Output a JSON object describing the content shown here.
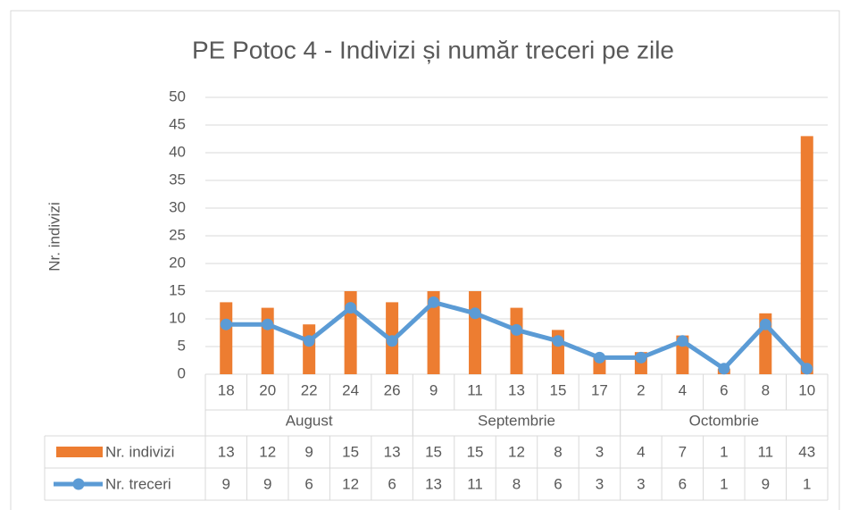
{
  "chart_data": {
    "type": "bar-line",
    "title": "PE Potoc 4 - Indivizi și număr treceri pe zile",
    "y_label": "Nr. indivizi",
    "category_groups": [
      {
        "label": "August",
        "categories": [
          "18",
          "20",
          "22",
          "24",
          "26"
        ]
      },
      {
        "label": "Septembrie",
        "categories": [
          "9",
          "11",
          "13",
          "15",
          "17"
        ]
      },
      {
        "label": "Octombrie",
        "categories": [
          "2",
          "4",
          "6",
          "8",
          "10"
        ]
      }
    ],
    "series": [
      {
        "name": "Nr. indivizi",
        "type": "bar",
        "color": "#ed7d31",
        "values": [
          13,
          12,
          9,
          15,
          13,
          15,
          15,
          12,
          8,
          3,
          4,
          7,
          1,
          11,
          43
        ]
      },
      {
        "name": "Nr. treceri",
        "type": "line",
        "color": "#5b9bd5",
        "values": [
          9,
          9,
          6,
          12,
          6,
          13,
          11,
          8,
          6,
          3,
          3,
          6,
          1,
          9,
          1
        ]
      }
    ],
    "ylim": [
      0,
      50
    ],
    "yticks": [
      0,
      5,
      10,
      15,
      20,
      25,
      30,
      35,
      40,
      45,
      50
    ],
    "grid": true,
    "data_table": true
  }
}
